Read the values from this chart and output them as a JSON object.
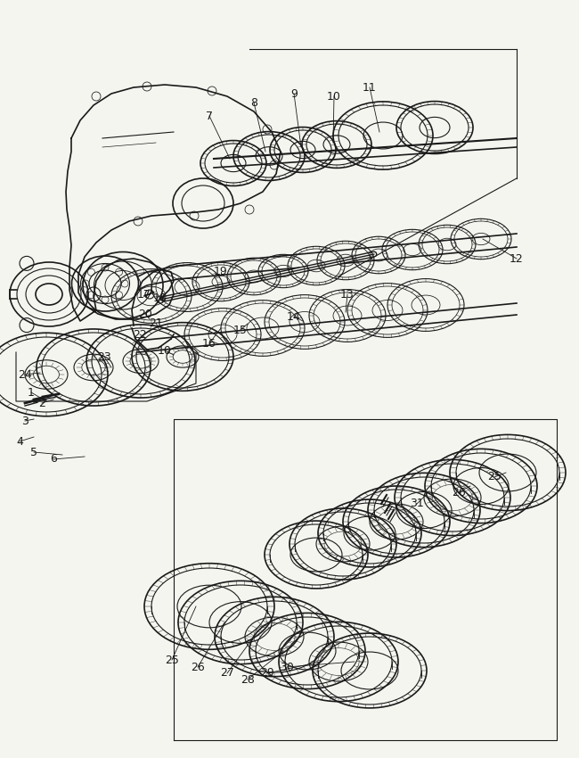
{
  "bg": "#f5f5f0",
  "lc": "#1a1a1a",
  "figsize": [
    6.5,
    8.5
  ],
  "dpi": 100,
  "labels": [
    [
      "1",
      35,
      440
    ],
    [
      "2",
      47,
      452
    ],
    [
      "3",
      28,
      472
    ],
    [
      "4",
      22,
      495
    ],
    [
      "5",
      38,
      507
    ],
    [
      "6",
      60,
      515
    ],
    [
      "7",
      235,
      130
    ],
    [
      "8",
      285,
      115
    ],
    [
      "9",
      330,
      105
    ],
    [
      "10",
      375,
      108
    ],
    [
      "11",
      415,
      98
    ],
    [
      "12",
      580,
      290
    ],
    [
      "13",
      390,
      330
    ],
    [
      "14",
      330,
      355
    ],
    [
      "15",
      270,
      370
    ],
    [
      "16",
      235,
      385
    ],
    [
      "10",
      185,
      393
    ],
    [
      "17",
      162,
      330
    ],
    [
      "18",
      180,
      335
    ],
    [
      "19",
      248,
      305
    ],
    [
      "20",
      163,
      352
    ],
    [
      "21",
      175,
      362
    ],
    [
      "22",
      157,
      375
    ],
    [
      "23",
      117,
      400
    ],
    [
      "24",
      28,
      420
    ],
    [
      "25",
      555,
      535
    ],
    [
      "26",
      515,
      552
    ],
    [
      "31",
      468,
      565
    ],
    [
      "25",
      193,
      740
    ],
    [
      "26",
      222,
      748
    ],
    [
      "27",
      255,
      755
    ],
    [
      "28",
      278,
      762
    ],
    [
      "29",
      300,
      755
    ],
    [
      "30",
      322,
      748
    ]
  ]
}
